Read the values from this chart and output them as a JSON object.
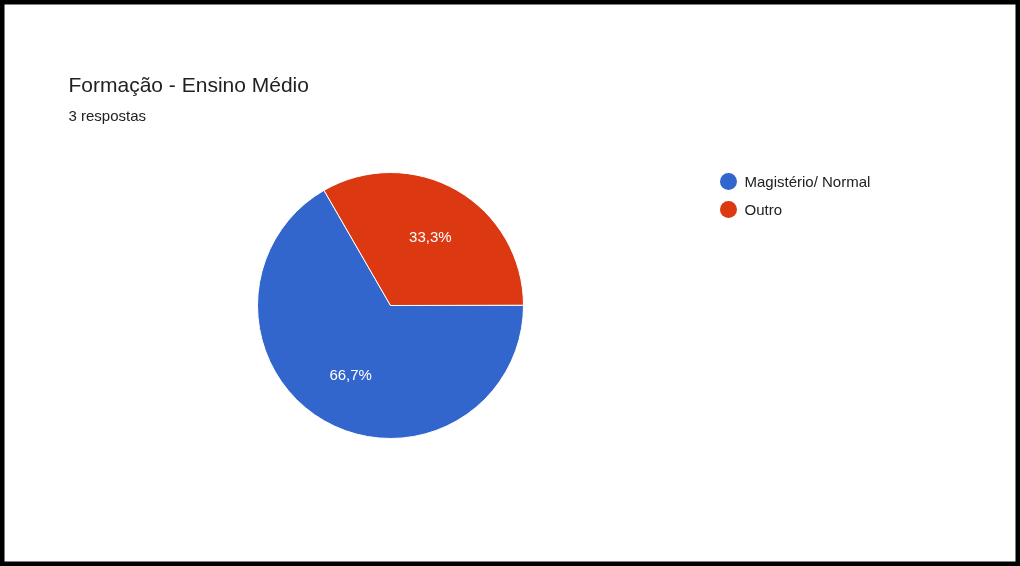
{
  "chart_data": {
    "type": "pie",
    "title": "Formação - Ensino Médio",
    "subtitle": "3 respostas",
    "categories": [
      "Magistério/ Normal",
      "Outro"
    ],
    "values": [
      66.7,
      33.3
    ],
    "colors": [
      "#3366cc",
      "#dc3912"
    ],
    "value_labels": [
      "66,7%",
      "33,3%"
    ],
    "legend": "right"
  }
}
